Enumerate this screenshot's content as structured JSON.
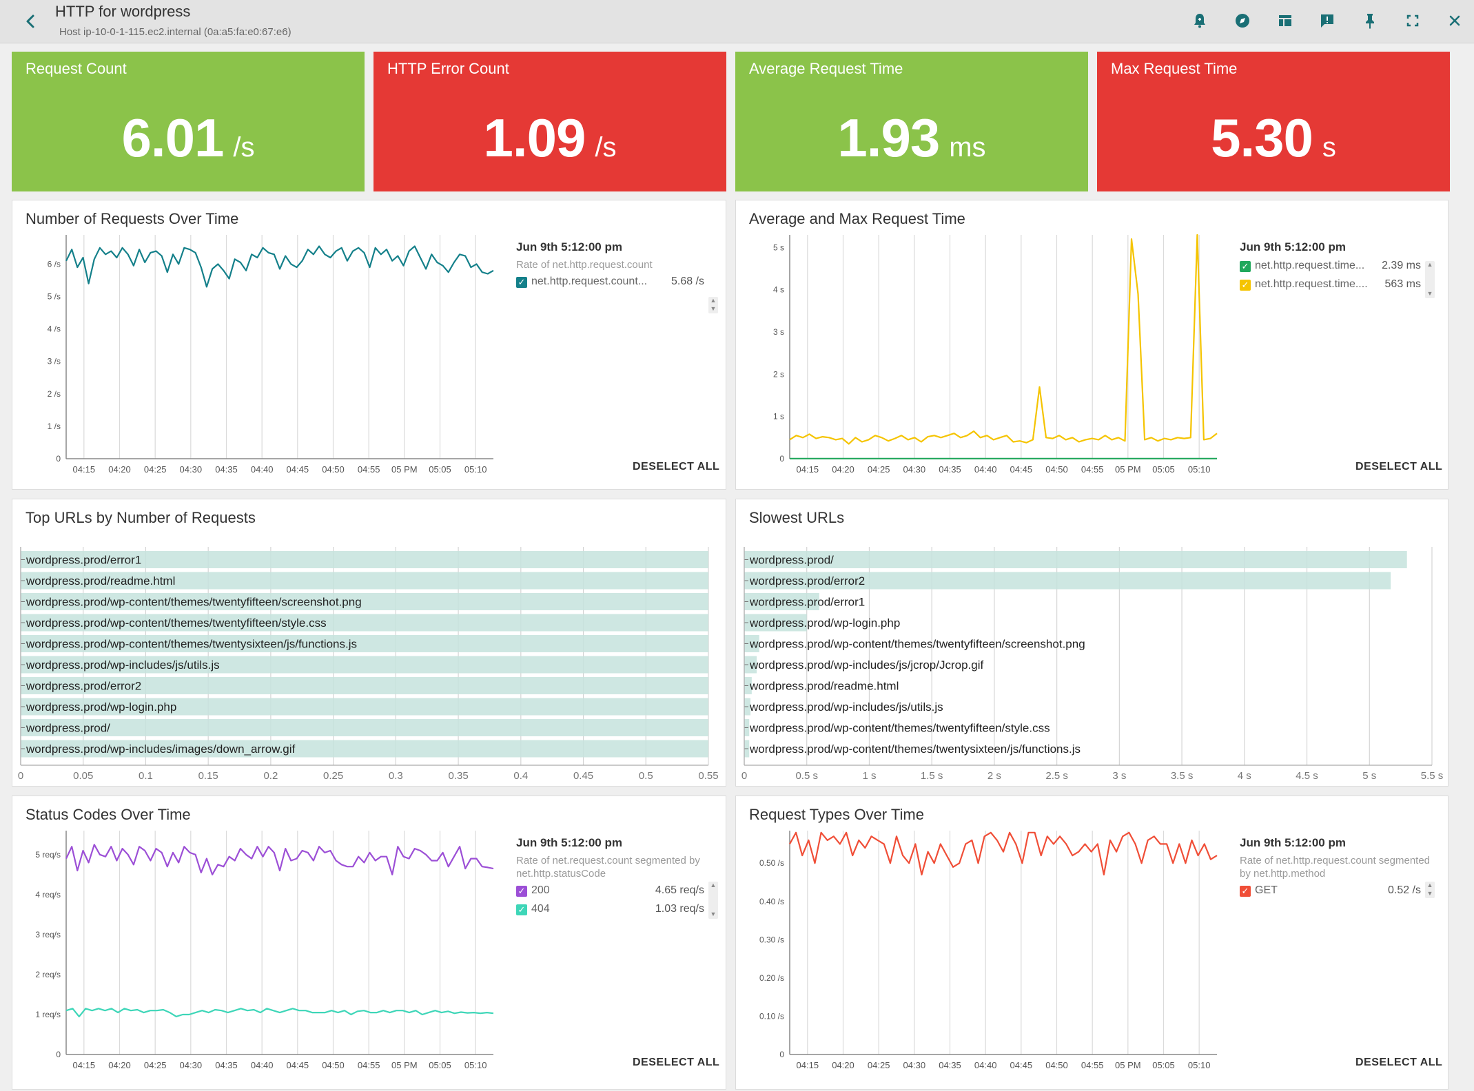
{
  "header": {
    "title": "HTTP for wordpress",
    "subtitle": "Host ip-10-0-1-115.ec2.internal (0a:a5:fa:e0:67:e6)",
    "icons": [
      "back-icon",
      "alert-bell-icon",
      "explore-icon",
      "layout-icon",
      "feedback-icon",
      "pin-icon",
      "fullscreen-icon",
      "close-icon"
    ]
  },
  "tiles": [
    {
      "title": "Request Count",
      "value": "6.01",
      "unit": "/s",
      "color": "#8bc34a"
    },
    {
      "title": "HTTP Error Count",
      "value": "1.09",
      "unit": "/s",
      "color": "#e53935"
    },
    {
      "title": "Average Request Time",
      "value": "1.93",
      "unit": "ms",
      "color": "#8bc34a"
    },
    {
      "title": "Max Request Time",
      "value": "5.30",
      "unit": "s",
      "color": "#e53935"
    }
  ],
  "panels": {
    "requests": {
      "title": "Number of Requests Over Time",
      "legend": {
        "time": "Jun 9th 5:12:00 pm",
        "desc": "Rate of net.http.request.count",
        "rows": [
          {
            "name": "net.http.request.count...",
            "value": "5.68 /s",
            "color": "#14808a"
          }
        ],
        "deselect": "DESELECT ALL"
      }
    },
    "reqtime": {
      "title": "Average and Max Request Time",
      "legend": {
        "time": "Jun 9th 5:12:00 pm",
        "rows": [
          {
            "name": "net.http.request.time...",
            "value": "2.39 ms",
            "color": "#21a85c"
          },
          {
            "name": "net.http.request.time....",
            "value": "563 ms",
            "color": "#f5c400"
          }
        ],
        "deselect": "DESELECT ALL"
      }
    },
    "topurls": {
      "title": "Top URLs by Number of Requests"
    },
    "slowurls": {
      "title": "Slowest URLs"
    },
    "status": {
      "title": "Status Codes Over Time",
      "legend": {
        "time": "Jun 9th 5:12:00 pm",
        "desc": "Rate of net.request.count segmented by net.http.statusCode",
        "rows": [
          {
            "name": "200",
            "value": "4.65 req/s",
            "color": "#9c4fd6"
          },
          {
            "name": "404",
            "value": "1.03 req/s",
            "color": "#3ed6b8"
          }
        ],
        "deselect": "DESELECT ALL"
      }
    },
    "reqtypes": {
      "title": "Request Types Over Time",
      "legend": {
        "time": "Jun 9th 5:12:00 pm",
        "desc": "Rate of net.http.request.count segmented by net.http.method",
        "rows": [
          {
            "name": "GET",
            "value": "0.52 /s",
            "color": "#f04e37"
          }
        ],
        "deselect": "DESELECT ALL"
      }
    }
  },
  "chart_data": [
    {
      "id": "requests",
      "type": "line",
      "title": "Number of Requests Over Time",
      "x_ticks": [
        "04:15",
        "04:20",
        "04:25",
        "04:30",
        "04:35",
        "04:40",
        "04:45",
        "04:50",
        "04:55",
        "05 PM",
        "05:05",
        "05:10"
      ],
      "y_ticks": [
        "0",
        "1 /s",
        "2 /s",
        "3 /s",
        "4 /s",
        "5 /s",
        "6 /s"
      ],
      "ylim": [
        0,
        6.9
      ],
      "x_range_minutes": [
        0,
        60
      ],
      "grid": "vertical",
      "series": [
        {
          "name": "net.http.request.count",
          "color": "#14808a",
          "values": [
            6.1,
            6.45,
            5.9,
            6.2,
            5.4,
            6.15,
            6.5,
            6.3,
            6.4,
            6.2,
            6.5,
            6.3,
            5.95,
            6.45,
            6.05,
            6.35,
            6.4,
            6.25,
            5.75,
            6.3,
            6.0,
            6.5,
            6.45,
            6.35,
            5.9,
            5.3,
            5.85,
            6.0,
            5.8,
            5.55,
            6.15,
            6.05,
            5.8,
            6.3,
            6.2,
            6.5,
            6.35,
            6.3,
            5.85,
            6.25,
            6.0,
            5.9,
            6.1,
            6.45,
            6.3,
            6.55,
            6.3,
            6.2,
            6.4,
            6.5,
            6.1,
            6.4,
            6.5,
            6.35,
            5.9,
            6.5,
            6.3,
            6.45,
            6.1,
            6.25,
            5.95,
            6.4,
            6.55,
            6.2,
            5.85,
            6.3,
            6.05,
            5.95,
            5.75,
            6.05,
            6.3,
            6.25,
            5.9,
            6.0,
            5.75,
            5.7,
            5.8
          ]
        }
      ]
    },
    {
      "id": "reqtime",
      "type": "line",
      "title": "Average and Max Request Time",
      "x_ticks": [
        "04:15",
        "04:20",
        "04:25",
        "04:30",
        "04:35",
        "04:40",
        "04:45",
        "04:50",
        "04:55",
        "05 PM",
        "05:05",
        "05:10"
      ],
      "y_ticks": [
        "0",
        "1 s",
        "2 s",
        "3 s",
        "4 s",
        "5 s"
      ],
      "ylim": [
        0,
        5.3
      ],
      "x_range_minutes": [
        0,
        60
      ],
      "grid": "vertical",
      "series": [
        {
          "name": "net.http.request.time (avg)",
          "color": "#21a85c",
          "values": [
            0.003,
            0.003,
            0.003,
            0.003,
            0.003,
            0.003,
            0.003,
            0.003,
            0.003,
            0.003,
            0.003,
            0.003,
            0.003,
            0.003,
            0.003,
            0.003,
            0.003,
            0.003,
            0.003,
            0.003,
            0.003,
            0.003,
            0.003,
            0.003,
            0.003,
            0.003,
            0.003,
            0.003,
            0.003,
            0.003,
            0.003,
            0.003,
            0.003,
            0.003,
            0.003,
            0.003,
            0.003,
            0.003,
            0.003,
            0.003,
            0.003,
            0.003,
            0.003,
            0.003,
            0.003,
            0.003,
            0.003,
            0.003,
            0.003,
            0.003,
            0.003,
            0.003,
            0.003,
            0.003,
            0.003,
            0.003,
            0.003,
            0.003,
            0.003,
            0.003,
            0.003
          ]
        },
        {
          "name": "net.http.request.time (max)",
          "color": "#f5c400",
          "values": [
            0.45,
            0.55,
            0.5,
            0.58,
            0.48,
            0.52,
            0.5,
            0.45,
            0.48,
            0.35,
            0.5,
            0.4,
            0.45,
            0.55,
            0.5,
            0.42,
            0.48,
            0.55,
            0.45,
            0.5,
            0.4,
            0.52,
            0.55,
            0.5,
            0.55,
            0.6,
            0.5,
            0.55,
            0.65,
            0.5,
            0.55,
            0.45,
            0.5,
            0.55,
            0.4,
            0.42,
            0.38,
            0.45,
            1.7,
            0.5,
            0.48,
            0.55,
            0.45,
            0.5,
            0.4,
            0.45,
            0.48,
            0.45,
            0.55,
            0.45,
            0.5,
            0.42,
            5.2,
            3.9,
            0.45,
            0.5,
            0.42,
            0.48,
            0.45,
            0.5,
            0.48,
            0.5,
            5.3,
            0.45,
            0.48,
            0.6
          ]
        }
      ]
    },
    {
      "id": "topurls",
      "type": "bar",
      "title": "Top URLs by Number of Requests",
      "orientation": "horizontal",
      "categories": [
        "wordpress.prod/error1",
        "wordpress.prod/readme.html",
        "wordpress.prod/wp-content/themes/twentyfifteen/screenshot.png",
        "wordpress.prod/wp-content/themes/twentyfifteen/style.css",
        "wordpress.prod/wp-content/themes/twentysixteen/js/functions.js",
        "wordpress.prod/wp-includes/js/utils.js",
        "wordpress.prod/error2",
        "wordpress.prod/wp-login.php",
        "wordpress.prod/",
        "wordpress.prod/wp-includes/images/down_arrow.gif"
      ],
      "values": [
        0.55,
        0.55,
        0.55,
        0.55,
        0.55,
        0.55,
        0.55,
        0.55,
        0.55,
        0.55
      ],
      "x_ticks": [
        "0",
        "0.05",
        "0.1",
        "0.15",
        "0.2",
        "0.25",
        "0.3",
        "0.35",
        "0.4",
        "0.45",
        "0.5",
        "0.55"
      ],
      "xlim": [
        0,
        0.55
      ],
      "color": "#c5e3dd"
    },
    {
      "id": "slowurls",
      "type": "bar",
      "title": "Slowest URLs",
      "orientation": "horizontal",
      "categories": [
        "wordpress.prod/",
        "wordpress.prod/error2",
        "wordpress.prod/error1",
        "wordpress.prod/wp-login.php",
        "wordpress.prod/wp-content/themes/twentyfifteen/screenshot.png",
        "wordpress.prod/wp-includes/js/jcrop/Jcrop.gif",
        "wordpress.prod/readme.html",
        "wordpress.prod/wp-includes/js/utils.js",
        "wordpress.prod/wp-content/themes/twentyfifteen/style.css",
        "wordpress.prod/wp-content/themes/twentysixteen/js/functions.js"
      ],
      "values": [
        5.3,
        5.17,
        0.6,
        0.5,
        0.12,
        0.1,
        0.06,
        0.05,
        0.04,
        0.04
      ],
      "x_ticks": [
        "0",
        "0.5 s",
        "1 s",
        "1.5 s",
        "2 s",
        "2.5 s",
        "3 s",
        "3.5 s",
        "4 s",
        "4.5 s",
        "5 s",
        "5.5 s"
      ],
      "xlim": [
        0,
        5.5
      ],
      "color": "#c5e3dd"
    },
    {
      "id": "status",
      "type": "line",
      "title": "Status Codes Over Time",
      "x_ticks": [
        "04:15",
        "04:20",
        "04:25",
        "04:30",
        "04:35",
        "04:40",
        "04:45",
        "04:50",
        "04:55",
        "05 PM",
        "05:05",
        "05:10"
      ],
      "y_ticks": [
        "0",
        "1 req/s",
        "2 req/s",
        "3 req/s",
        "4 req/s",
        "5 req/s"
      ],
      "ylim": [
        0,
        5.6
      ],
      "x_range_minutes": [
        0,
        60
      ],
      "grid": "vertical",
      "series": [
        {
          "name": "200",
          "color": "#9c4fd6",
          "values": [
            4.9,
            5.2,
            4.6,
            5.1,
            4.8,
            5.25,
            5.0,
            4.95,
            5.2,
            4.85,
            5.15,
            5.0,
            4.75,
            5.2,
            5.1,
            4.85,
            5.15,
            5.05,
            4.7,
            5.05,
            4.8,
            5.2,
            5.05,
            5.0,
            4.55,
            4.9,
            4.5,
            4.75,
            4.7,
            4.95,
            4.85,
            5.15,
            5.0,
            4.9,
            5.2,
            4.95,
            5.2,
            5.05,
            4.6,
            5.15,
            4.85,
            4.9,
            5.1,
            5.05,
            4.85,
            5.2,
            5.05,
            5.1,
            4.85,
            4.75,
            4.7,
            4.7,
            4.95,
            4.8,
            5.05,
            4.85,
            4.95,
            4.95,
            4.5,
            5.2,
            4.95,
            4.9,
            5.15,
            5.1,
            5.0,
            4.85,
            4.85,
            5.05,
            4.7,
            4.95,
            5.2,
            4.65,
            4.9,
            4.9,
            4.7,
            4.68,
            4.65
          ]
        },
        {
          "name": "404",
          "color": "#3ed6b8",
          "values": [
            1.1,
            1.15,
            0.95,
            1.15,
            1.1,
            1.15,
            1.1,
            1.15,
            1.05,
            1.15,
            1.1,
            1.12,
            1.05,
            1.1,
            1.1,
            1.12,
            1.05,
            0.95,
            1.0,
            1.0,
            1.05,
            1.1,
            1.05,
            1.12,
            1.1,
            1.05,
            1.1,
            1.15,
            1.1,
            1.12,
            1.05,
            1.15,
            1.1,
            1.05,
            1.1,
            1.15,
            1.1,
            1.1,
            1.05,
            1.05,
            1.05,
            1.1,
            1.05,
            1.1,
            1.0,
            1.08,
            1.1,
            1.05,
            1.05,
            1.1,
            1.05,
            1.1,
            1.1,
            1.05,
            1.1,
            1.0,
            1.05,
            1.1,
            1.05,
            1.08,
            1.03,
            1.06,
            1.04,
            1.05,
            1.03,
            1.05,
            1.03
          ]
        }
      ]
    },
    {
      "id": "reqtypes",
      "type": "line",
      "title": "Request Types Over Time",
      "x_ticks": [
        "04:15",
        "04:20",
        "04:25",
        "04:30",
        "04:35",
        "04:40",
        "04:45",
        "04:50",
        "04:55",
        "05 PM",
        "05:05",
        "05:10"
      ],
      "y_ticks": [
        "0",
        "0.10 /s",
        "0.20 /s",
        "0.30 /s",
        "0.40 /s",
        "0.50 /s"
      ],
      "ylim": [
        0,
        0.585
      ],
      "x_range_minutes": [
        0,
        60
      ],
      "grid": "vertical",
      "series": [
        {
          "name": "GET",
          "color": "#f04e37",
          "values": [
            0.55,
            0.58,
            0.52,
            0.56,
            0.5,
            0.58,
            0.56,
            0.57,
            0.55,
            0.58,
            0.52,
            0.56,
            0.54,
            0.57,
            0.56,
            0.55,
            0.5,
            0.57,
            0.52,
            0.5,
            0.55,
            0.47,
            0.53,
            0.5,
            0.55,
            0.52,
            0.49,
            0.5,
            0.55,
            0.56,
            0.5,
            0.57,
            0.58,
            0.56,
            0.53,
            0.58,
            0.55,
            0.5,
            0.58,
            0.58,
            0.52,
            0.57,
            0.55,
            0.57,
            0.55,
            0.52,
            0.53,
            0.55,
            0.53,
            0.55,
            0.47,
            0.56,
            0.53,
            0.57,
            0.58,
            0.55,
            0.5,
            0.56,
            0.57,
            0.55,
            0.55,
            0.5,
            0.55,
            0.5,
            0.56,
            0.52,
            0.55,
            0.51,
            0.52
          ]
        }
      ]
    }
  ]
}
